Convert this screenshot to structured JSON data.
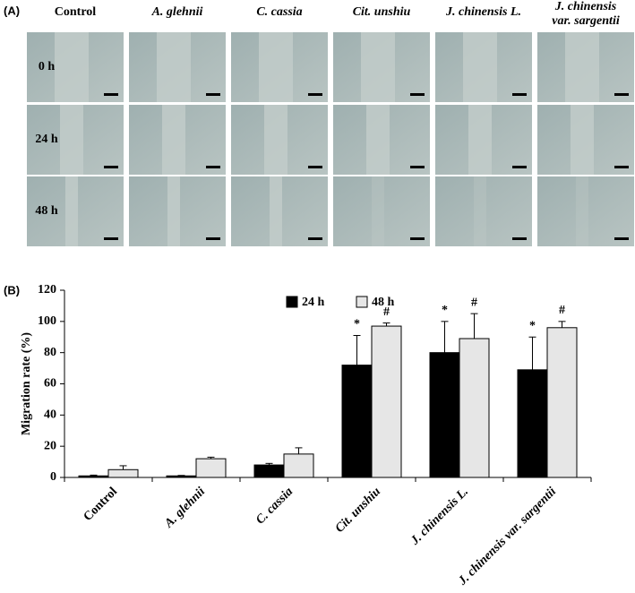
{
  "panel_a": {
    "label": "(A)",
    "columns": [
      [
        "Control"
      ],
      [
        "A. glehnii"
      ],
      [
        "C. cassia"
      ],
      [
        "Cit. unshiu"
      ],
      [
        "J. chinensis L."
      ],
      [
        "J. chinensis",
        "var. sargentii"
      ]
    ],
    "rows": [
      "0 h",
      "24 h",
      "48 h"
    ]
  },
  "chart_data": {
    "type": "bar",
    "panel_label": "(B)",
    "y_label": "Migration rate (%)",
    "categories": [
      "Control",
      "A. glehnii",
      "C. cassia",
      "Cit. unshiu",
      "J. chinensis L.",
      "J. chinensis var. sargentii"
    ],
    "series": [
      {
        "name": "24 h",
        "color": "#000000",
        "values": [
          1,
          1,
          8,
          72,
          80,
          69
        ],
        "errors": [
          0.5,
          0.3,
          1,
          19,
          20,
          21
        ],
        "significance": [
          null,
          null,
          null,
          "*",
          "*",
          "*"
        ]
      },
      {
        "name": "48 h",
        "color": "#e6e6e6",
        "values": [
          5,
          12,
          15,
          97,
          89,
          96
        ],
        "errors": [
          2.5,
          1,
          4,
          2,
          16,
          4
        ],
        "significance": [
          null,
          null,
          null,
          "#",
          "#",
          "#"
        ]
      }
    ],
    "ylim": [
      0,
      120
    ],
    "yticks": [
      0,
      20,
      40,
      60,
      80,
      100,
      120
    ],
    "grid": false,
    "legend": "top"
  }
}
